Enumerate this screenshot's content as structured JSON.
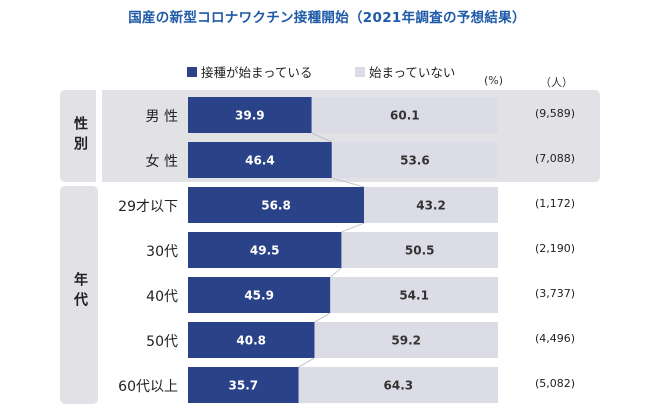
{
  "title": "国産の新型コロナワクチン接種開始（2021年調査の予想結果）",
  "legend": [
    {
      "label": "接種が始まっている",
      "color": "#2a4288"
    },
    {
      "label": "始まっていない",
      "color": "#dcdce6"
    }
  ],
  "unit_percent": "(%)",
  "unit_people": "（人）",
  "chart_data": {
    "type": "bar",
    "orientation": "horizontal",
    "stacked": true,
    "title": "国産の新型コロナワクチン接種開始（2021年調査の予想結果）",
    "groups": [
      {
        "label": "性別",
        "categories": [
          "男 性",
          "女 性"
        ]
      },
      {
        "label": "年代",
        "categories": [
          "29才以下",
          "30代",
          "40代",
          "50代",
          "60代以上"
        ]
      }
    ],
    "categories": [
      "男 性",
      "女 性",
      "29才以下",
      "30代",
      "40代",
      "50代",
      "60代以上"
    ],
    "series": [
      {
        "name": "接種が始まっている",
        "color": "#2a4288",
        "values": [
          39.9,
          46.4,
          56.8,
          49.5,
          45.9,
          40.8,
          35.7
        ]
      },
      {
        "name": "始まっていない",
        "color": "#dcdce6",
        "values": [
          60.1,
          53.6,
          43.2,
          50.5,
          54.1,
          59.2,
          64.3
        ]
      }
    ],
    "counts": [
      "(9,589)",
      "(7,088)",
      "(1,172)",
      "(2,190)",
      "(3,737)",
      "(4,496)",
      "(5,082)"
    ],
    "xlim": [
      0,
      100
    ],
    "legend_position": "top"
  }
}
